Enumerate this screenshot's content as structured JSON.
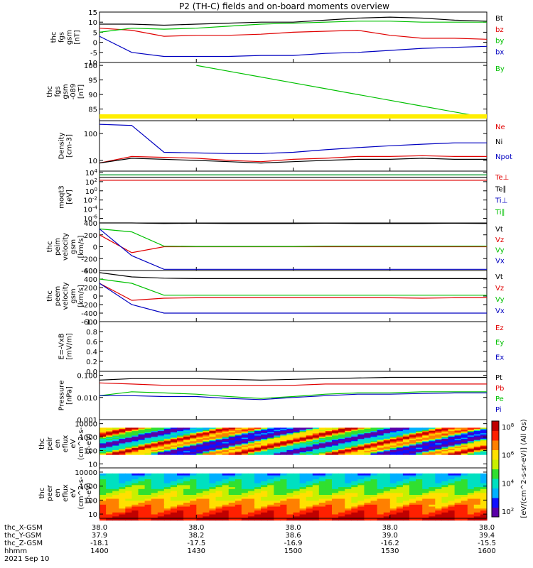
{
  "title": "P2 (TH-C) fields and on-board moments overview",
  "footer": {
    "rows": [
      {
        "label": "thc_X-GSM",
        "values": [
          "38.0",
          "38.0",
          "38.0",
          "38.0",
          "38.0"
        ]
      },
      {
        "label": "thc_Y-GSM",
        "values": [
          "37.9",
          "38.2",
          "38.6",
          "39.0",
          "39.4"
        ]
      },
      {
        "label": "thc_Z-GSM",
        "values": [
          "-18.1",
          "-17.5",
          "-16.9",
          "-16.2",
          "-15.5"
        ]
      },
      {
        "label": "hhmm",
        "values": [
          "1400",
          "1430",
          "1500",
          "1530",
          "1600"
        ]
      }
    ],
    "date": "2021 Sep 10"
  },
  "colorbar": {
    "label": "[eV/(cm^2-s-sr-eV)] (All Qs)",
    "ticks": [
      "10^8",
      "10^6",
      "10^4",
      "10^2"
    ],
    "colors": [
      "#ffffff",
      "#5a00a8",
      "#1010ff",
      "#00b0ff",
      "#00e0c0",
      "#30e030",
      "#c8f000",
      "#ffe000",
      "#ff8000",
      "#ff2000",
      "#c00000"
    ]
  },
  "chart_data": [
    {
      "type": "line",
      "ylabel": [
        "thc",
        "fgs",
        "gsm",
        "[nT]"
      ],
      "ylim": [
        -10,
        15
      ],
      "yticks": [
        "15",
        "10",
        "5",
        "0",
        "-5",
        "-10"
      ],
      "series": [
        {
          "name": "Bt",
          "color": "#000000",
          "values": [
            9,
            9,
            8.5,
            9,
            9.5,
            10,
            10,
            11,
            12,
            12.5,
            12,
            11,
            10.5
          ]
        },
        {
          "name": "bz",
          "color": "#e00000",
          "values": [
            7,
            6,
            3,
            3.5,
            3.5,
            4,
            5,
            5.5,
            6,
            3.5,
            2,
            2,
            1.5
          ]
        },
        {
          "name": "by",
          "color": "#00c000",
          "values": [
            5,
            7,
            6.5,
            7,
            8,
            9,
            9.5,
            10,
            10.5,
            10.5,
            10,
            10,
            10
          ]
        },
        {
          "name": "bx",
          "color": "#0000c0",
          "values": [
            3,
            -5,
            -7,
            -7,
            -7,
            -6.5,
            -6.5,
            -5.5,
            -5,
            -4,
            -3,
            -2.5,
            -2
          ]
        }
      ]
    },
    {
      "type": "line",
      "ylabel": [
        "thc",
        "fgs",
        "gsm",
        "-089",
        "[nT]"
      ],
      "ylim": [
        81,
        101
      ],
      "yticks": [
        "100",
        "95",
        "90",
        "85"
      ],
      "series": [
        {
          "name": "By",
          "color": "#00c000",
          "values": [
            null,
            null,
            null,
            100,
            98,
            96,
            94,
            92,
            90,
            88,
            86,
            84,
            82
          ]
        }
      ]
    },
    {
      "type": "line",
      "ylabel": [
        "Density",
        "[cm-3]"
      ],
      "ylim": [
        4,
        300
      ],
      "scale": "log",
      "yticks": [
        "100",
        "10"
      ],
      "series": [
        {
          "name": "Ne",
          "color": "#e00000",
          "values": [
            8,
            14,
            13,
            12,
            10,
            9,
            11,
            12,
            14,
            14,
            15,
            14,
            14
          ]
        },
        {
          "name": "Ni",
          "color": "#000000",
          "values": [
            8,
            12,
            11,
            10,
            9,
            8,
            9,
            10,
            11,
            11,
            12,
            11,
            11
          ]
        },
        {
          "name": "Npot",
          "color": "#0000c0",
          "values": [
            220,
            200,
            20,
            19,
            18,
            18,
            20,
            25,
            30,
            35,
            40,
            45,
            45
          ]
        }
      ]
    },
    {
      "type": "line",
      "ylabel": [
        "moqt3",
        "[eV]"
      ],
      "ylim": [
        1e-07,
        20000
      ],
      "scale": "log",
      "yticks": [
        "10^4",
        "10^2",
        "10^0",
        "10^-2",
        "10^-4",
        "10^-6"
      ],
      "series": [
        {
          "name": "Te⊥",
          "color": "#e00000",
          "values": [
            200,
            200,
            200,
            200,
            200,
            200,
            200,
            200,
            200,
            200,
            200,
            200,
            200
          ]
        },
        {
          "name": "Te∥",
          "color": "#000000",
          "values": [
            900,
            900,
            900,
            900,
            900,
            900,
            900,
            900,
            900,
            900,
            900,
            900,
            900
          ]
        },
        {
          "name": "Ti⊥",
          "color": "#0000c0",
          "values": [
            3000,
            3000,
            3000,
            3000,
            3000,
            3000,
            3000,
            3000,
            3000,
            3000,
            3000,
            3000,
            3000
          ]
        },
        {
          "name": "Ti∥",
          "color": "#00c000",
          "values": [
            3000,
            3000,
            3000,
            3000,
            3000,
            3000,
            3000,
            3000,
            3000,
            3000,
            3000,
            3000,
            3000
          ]
        }
      ]
    },
    {
      "type": "line",
      "ylabel": [
        "thc",
        "peim",
        "velocity",
        "gsm",
        "[km/s]"
      ],
      "ylim": [
        -400,
        400
      ],
      "yticks": [
        "400",
        "200",
        "0",
        "-200",
        "-400"
      ],
      "series": [
        {
          "name": "Vt",
          "color": "#000000",
          "values": [
            400,
            400,
            390,
            395,
            390,
            390,
            390,
            395,
            390,
            390,
            390,
            395,
            390
          ]
        },
        {
          "name": "Vz",
          "color": "#e00000",
          "values": [
            200,
            -100,
            0,
            0,
            0,
            0,
            0,
            0,
            0,
            0,
            0,
            0,
            0
          ]
        },
        {
          "name": "Vy",
          "color": "#00c000",
          "values": [
            300,
            250,
            10,
            5,
            5,
            5,
            5,
            10,
            10,
            10,
            10,
            10,
            10
          ]
        },
        {
          "name": "Vx",
          "color": "#0000c0",
          "values": [
            300,
            -150,
            -380,
            -380,
            -380,
            -380,
            -380,
            -380,
            -380,
            -380,
            -380,
            -380,
            -380
          ]
        }
      ]
    },
    {
      "type": "line",
      "ylabel": [
        "thc",
        "peem",
        "velocity",
        "gsm",
        "[km/s]"
      ],
      "ylim": [
        -600,
        600
      ],
      "yticks": [
        "600",
        "400",
        "200",
        "0",
        "-200",
        "-400",
        "-600"
      ],
      "series": [
        {
          "name": "Vt",
          "color": "#000000",
          "values": [
            550,
            450,
            420,
            410,
            410,
            410,
            410,
            410,
            410,
            410,
            410,
            410,
            410
          ]
        },
        {
          "name": "Vz",
          "color": "#e00000",
          "values": [
            300,
            -100,
            -50,
            -40,
            -40,
            -40,
            -40,
            -40,
            -40,
            -40,
            -50,
            -40,
            -40
          ]
        },
        {
          "name": "Vy",
          "color": "#00c000",
          "values": [
            400,
            300,
            20,
            20,
            20,
            20,
            20,
            20,
            20,
            20,
            20,
            20,
            20
          ]
        },
        {
          "name": "Vx",
          "color": "#0000c0",
          "values": [
            300,
            -200,
            -400,
            -400,
            -400,
            -400,
            -400,
            -400,
            -400,
            -400,
            -400,
            -400,
            -400
          ]
        }
      ]
    },
    {
      "type": "line",
      "ylabel": [
        "E=-VxB",
        "[mV/m]"
      ],
      "ylim": [
        0,
        1
      ],
      "yticks": [
        "1.0",
        "0.8",
        "0.6",
        "0.4",
        "0.2",
        "0.0"
      ],
      "series": [
        {
          "name": "Ez",
          "color": "#e00000",
          "values": []
        },
        {
          "name": "Ey",
          "color": "#00c000",
          "values": []
        },
        {
          "name": "Ex",
          "color": "#0000c0",
          "values": []
        }
      ]
    },
    {
      "type": "line",
      "ylabel": [
        "Pressure",
        "[nPa]"
      ],
      "ylim": [
        0.001,
        0.15
      ],
      "scale": "log",
      "yticks": [
        "0.100",
        "0.010",
        "0.001"
      ],
      "series": [
        {
          "name": "Pt",
          "color": "#000000",
          "values": [
            0.06,
            0.07,
            0.07,
            0.07,
            0.065,
            0.06,
            0.065,
            0.07,
            0.075,
            0.08,
            0.08,
            0.08,
            0.08
          ]
        },
        {
          "name": "Pb",
          "color": "#e00000",
          "values": [
            0.045,
            0.04,
            0.035,
            0.035,
            0.035,
            0.035,
            0.035,
            0.04,
            0.04,
            0.04,
            0.04,
            0.04,
            0.04
          ]
        },
        {
          "name": "Pe",
          "color": "#00c000",
          "values": [
            0.012,
            0.018,
            0.016,
            0.014,
            0.011,
            0.009,
            0.011,
            0.014,
            0.016,
            0.016,
            0.018,
            0.018,
            0.018
          ]
        },
        {
          "name": "Pi",
          "color": "#0000c0",
          "values": [
            0.012,
            0.012,
            0.011,
            0.011,
            0.009,
            0.008,
            0.01,
            0.012,
            0.014,
            0.014,
            0.015,
            0.016,
            0.016
          ]
        }
      ]
    },
    {
      "type": "heatmap",
      "ylabel": [
        "thc",
        "peir",
        "en",
        "eflux",
        "eV",
        "(cm^2-s-",
        "sr-eV)"
      ],
      "ylim": [
        5,
        20000
      ],
      "scale": "log",
      "yticks": [
        "10000",
        "1000",
        "100",
        "10"
      ]
    },
    {
      "type": "heatmap",
      "ylabel": [
        "thc",
        "peer",
        "en",
        "eflux",
        "eV",
        "(cm^2-s-",
        "sr-eV)"
      ],
      "ylim": [
        5,
        20000
      ],
      "scale": "log",
      "yticks": [
        "10000",
        "1000",
        "100",
        "10"
      ]
    }
  ]
}
